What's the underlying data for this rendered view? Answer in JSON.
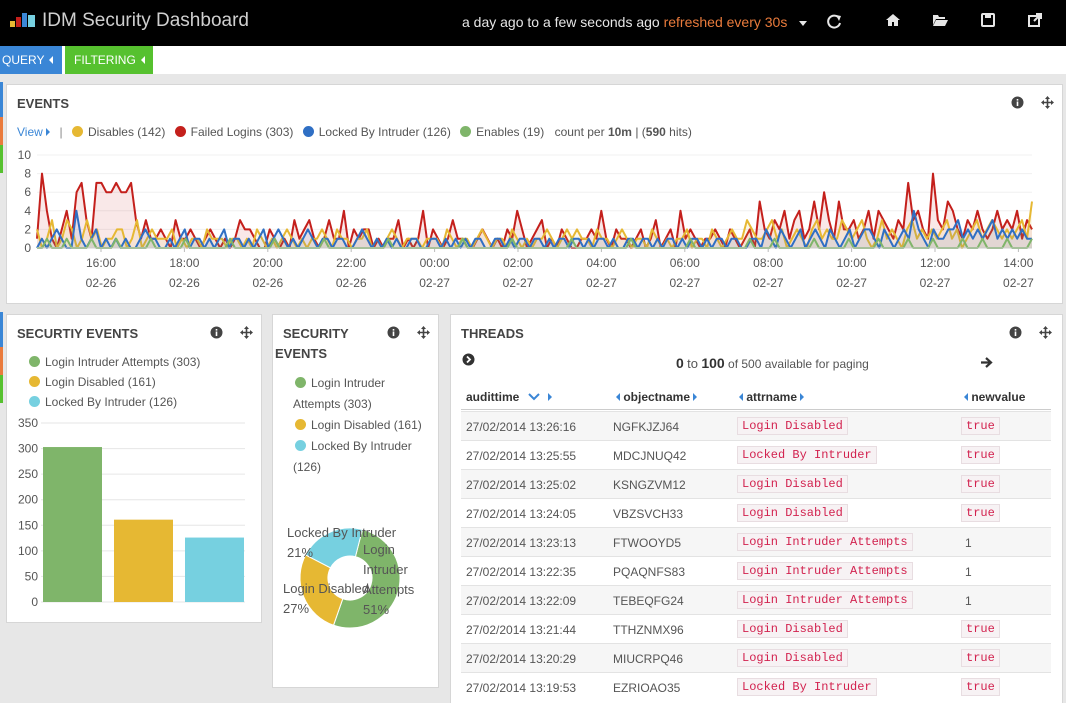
{
  "app": {
    "title": "IDM Security Dashboard"
  },
  "timepicker": {
    "range": "a day ago to a few seconds ago",
    "refresh": "refreshed every 30s"
  },
  "pills": {
    "query": "QUERY",
    "filtering": "FILTERING"
  },
  "events_panel": {
    "title": "EVENTS",
    "view_label": "View",
    "legend": [
      {
        "label": "Disables (142)",
        "color": "#e6b833"
      },
      {
        "label": "Failed Logins (303)",
        "color": "#c4201c"
      },
      {
        "label": "Locked By Intruder (126)",
        "color": "#2f6fc4"
      },
      {
        "label": "Enables (19)",
        "color": "#7fb56a"
      }
    ],
    "count_prefix": "count per",
    "interval": "10m",
    "sep": "| (",
    "hits": "590",
    "hits_suffix": "hits)"
  },
  "events_chart": {
    "type": "line",
    "y_ticks": [
      "10",
      "8",
      "6",
      "4",
      "2",
      "0"
    ],
    "ylim": [
      0,
      10
    ],
    "x_ticks": [
      {
        "time": "16:00",
        "date": "02-26"
      },
      {
        "time": "18:00",
        "date": "02-26"
      },
      {
        "time": "20:00",
        "date": "02-26"
      },
      {
        "time": "22:00",
        "date": "02-26"
      },
      {
        "time": "00:00",
        "date": "02-27"
      },
      {
        "time": "02:00",
        "date": "02-27"
      },
      {
        "time": "04:00",
        "date": "02-27"
      },
      {
        "time": "06:00",
        "date": "02-27"
      },
      {
        "time": "08:00",
        "date": "02-27"
      },
      {
        "time": "10:00",
        "date": "02-27"
      },
      {
        "time": "12:00",
        "date": "02-27"
      },
      {
        "time": "14:00",
        "date": "02-27"
      }
    ],
    "series": [
      {
        "name": "Failed Logins",
        "color": "#c4201c",
        "fill": "rgba(196,32,28,0.10)",
        "values": [
          1,
          8,
          4,
          1,
          0,
          2,
          4,
          1,
          6,
          7,
          3,
          1,
          7,
          7,
          6,
          6,
          7,
          6,
          6,
          7,
          3,
          1,
          3,
          1,
          1,
          2,
          1,
          0,
          3,
          1,
          1,
          2,
          1,
          0,
          1,
          2,
          1,
          0,
          1,
          0,
          1,
          3,
          2,
          2,
          1,
          0,
          0,
          2,
          1,
          0,
          1,
          0,
          3,
          1,
          2,
          3,
          1,
          0,
          1,
          3,
          1,
          1,
          4,
          0,
          2,
          1,
          2,
          2,
          0,
          1,
          0,
          1,
          1,
          3,
          0,
          1,
          0,
          1,
          4,
          0,
          2,
          1,
          0,
          1,
          3,
          1,
          1,
          0,
          0,
          1,
          2,
          1,
          0,
          1,
          0,
          2,
          1,
          4,
          2,
          0,
          1,
          2,
          3,
          0,
          1,
          0,
          2,
          1,
          0,
          0,
          1,
          1,
          2,
          1,
          4,
          1,
          0,
          2,
          1,
          1,
          0,
          1,
          2,
          0,
          1,
          3,
          0,
          1,
          2,
          0,
          4,
          1,
          2,
          1,
          0,
          1,
          1,
          2,
          1,
          0,
          2,
          1,
          0,
          1,
          2,
          0,
          5,
          2,
          1,
          3,
          2,
          4,
          1,
          3,
          4,
          1,
          2,
          5,
          2,
          6,
          3,
          1,
          5,
          2,
          2,
          3,
          1,
          2,
          4,
          1,
          4,
          3,
          2,
          1,
          3,
          2,
          7,
          3,
          4,
          2,
          1,
          8,
          3,
          2,
          5,
          4,
          2,
          1,
          3,
          2,
          4,
          2,
          1,
          2,
          4,
          2,
          3,
          2,
          4,
          1,
          3,
          2
        ]
      },
      {
        "name": "Disables",
        "color": "#e6b833",
        "fill": "rgba(230,184,51,0.10)",
        "values": [
          2,
          0,
          1,
          3,
          0,
          1,
          3,
          2,
          0,
          1,
          3,
          1,
          2,
          0,
          1,
          1,
          2,
          2,
          0,
          1,
          3,
          0,
          1,
          2,
          1,
          1,
          1,
          2,
          0,
          1,
          0,
          1,
          1,
          0,
          2,
          1,
          1,
          1,
          0,
          1,
          1,
          0,
          1,
          0,
          2,
          1,
          0,
          1,
          0,
          1,
          2,
          1,
          0,
          1,
          0,
          1,
          1,
          2,
          1,
          0,
          2,
          1,
          1,
          0,
          1,
          1,
          2,
          0,
          1,
          0,
          1,
          2,
          1,
          0,
          1,
          1,
          1,
          0,
          1,
          1,
          1,
          0,
          2,
          1,
          0,
          1,
          1,
          0,
          1,
          2,
          1,
          0,
          1,
          1,
          0,
          2,
          1,
          0,
          1,
          0,
          1,
          1,
          2,
          1,
          0,
          1,
          2,
          1,
          2,
          1,
          1,
          0,
          2,
          1,
          1,
          0,
          1,
          2,
          1,
          0,
          1,
          1,
          0,
          2,
          1,
          0,
          1,
          0,
          1,
          1,
          2,
          0,
          1,
          1,
          0,
          2,
          1,
          0,
          1,
          2,
          1,
          1,
          3,
          2,
          1,
          1,
          2,
          3,
          1,
          2,
          0,
          1,
          2,
          1,
          0,
          2,
          3,
          1,
          2,
          1,
          1,
          3,
          2,
          1,
          2,
          3,
          1,
          0,
          1,
          3,
          1,
          2,
          1,
          0,
          2,
          3,
          1,
          2,
          1,
          2,
          1,
          2,
          3,
          1,
          2,
          0,
          1,
          2,
          3,
          1,
          2,
          3,
          2,
          1,
          2,
          1,
          2,
          3,
          1,
          5
        ]
      },
      {
        "name": "Locked By Intruder",
        "color": "#2f6fc4",
        "fill": "rgba(47,111,196,0.10)",
        "values": [
          0,
          1,
          0,
          1,
          2,
          1,
          0,
          0,
          4,
          1,
          0,
          1,
          2,
          0,
          1,
          0,
          1,
          0,
          1,
          0,
          0,
          1,
          2,
          1,
          1,
          0,
          0,
          1,
          0,
          1,
          2,
          0,
          1,
          1,
          0,
          1,
          0,
          1,
          2,
          0,
          1,
          1,
          0,
          1,
          0,
          1,
          2,
          0,
          1,
          2,
          1,
          0,
          1,
          0,
          1,
          2,
          1,
          0,
          1,
          1,
          0,
          1,
          1,
          0,
          0,
          1,
          2,
          1,
          0,
          1,
          0,
          1,
          0,
          1,
          0,
          0,
          1,
          1,
          0,
          0,
          1,
          1,
          0,
          1,
          0,
          1,
          0,
          1,
          0,
          1,
          1,
          0,
          0,
          1,
          1,
          0,
          1,
          0,
          1,
          1,
          0,
          1,
          1,
          0,
          1,
          0,
          1,
          1,
          0,
          1,
          1,
          0,
          1,
          0,
          1,
          1,
          0,
          1,
          0,
          0,
          1,
          1,
          0,
          1,
          1,
          0,
          1,
          0,
          1,
          1,
          0,
          1,
          0,
          1,
          1,
          0,
          1,
          0,
          1,
          1,
          0,
          1,
          1,
          0,
          0,
          1,
          1,
          0,
          2,
          1,
          0,
          2,
          1,
          0,
          1,
          2,
          0,
          1,
          2,
          1,
          0,
          2,
          1,
          0,
          1,
          2,
          0,
          1,
          2,
          2,
          1,
          0,
          2,
          1,
          0,
          1,
          2,
          1,
          4,
          2,
          1,
          0,
          2,
          1,
          1,
          2,
          2,
          3,
          1,
          2,
          1,
          2,
          1,
          2,
          3,
          1,
          2,
          1,
          2,
          1,
          2,
          1,
          1
        ]
      },
      {
        "name": "Enables",
        "color": "#7fb56a",
        "fill": "rgba(127,181,106,0.10)",
        "values": [
          0,
          0,
          1,
          0,
          0,
          0,
          1,
          0,
          0,
          0,
          0,
          1,
          0,
          0,
          0,
          0,
          1,
          0,
          0,
          0,
          0,
          0,
          0,
          1,
          0,
          0,
          0,
          0,
          0,
          0,
          1,
          0,
          0,
          0,
          0,
          0,
          0,
          0,
          0,
          1,
          0,
          0,
          0,
          0,
          0,
          0,
          0,
          0,
          1,
          0,
          0,
          0,
          0,
          0,
          0,
          0,
          0,
          0,
          1,
          0,
          0,
          0,
          0,
          0,
          0,
          0,
          0,
          0,
          0,
          0,
          0,
          1,
          0,
          0,
          0,
          0,
          0,
          0,
          0,
          0,
          0,
          0,
          0,
          0,
          0,
          0,
          1,
          0,
          0,
          0,
          0,
          0,
          0,
          0,
          0,
          0,
          1,
          0,
          0,
          0,
          0,
          0,
          0,
          0,
          0,
          0,
          0,
          0,
          1,
          0,
          0,
          0,
          0,
          0,
          0,
          0,
          0,
          0,
          0,
          0,
          1,
          0,
          0,
          0,
          0,
          0,
          0,
          0,
          0,
          0,
          0,
          0,
          1,
          0,
          0,
          0,
          0,
          0,
          0,
          0,
          0,
          0,
          0,
          0,
          1,
          0,
          0,
          0,
          0,
          1,
          0,
          0,
          0,
          0,
          0,
          0,
          0,
          1,
          0,
          0,
          0,
          0,
          0,
          0,
          1,
          0,
          0,
          0,
          0,
          0,
          1,
          0,
          0,
          0,
          0,
          0,
          1,
          0,
          0,
          0,
          0,
          1,
          0,
          0,
          0,
          0,
          0,
          1,
          0,
          0,
          0,
          1,
          0,
          0,
          0,
          0,
          1,
          0,
          0,
          0,
          0,
          1
        ]
      }
    ]
  },
  "security_bar_panel": {
    "title": "SECURTIY EVENTS",
    "legend": [
      {
        "label": "Login Intruder Attempts (303)",
        "color": "#7fb56a"
      },
      {
        "label": "Login Disabled (161)",
        "color": "#e6b833"
      },
      {
        "label": "Locked By Intruder (126)",
        "color": "#76d0e0"
      }
    ],
    "y_ticks": [
      "350",
      "300",
      "250",
      "200",
      "150",
      "100",
      "50",
      "0"
    ]
  },
  "security_pie_panel": {
    "title_line1": "SECURITY",
    "title_line2": "EVENTS",
    "legend": [
      {
        "line1": "Login Intruder",
        "line2": "Attempts (303)",
        "color": "#7fb56a"
      },
      {
        "line1": "Login Disabled (161)",
        "line2": "",
        "color": "#e6b833"
      },
      {
        "line1": "Locked By Intruder",
        "line2": "(126)",
        "color": "#76d0e0"
      }
    ],
    "labels": [
      {
        "text": "Locked By Intruder",
        "pct": "21%"
      },
      {
        "text": "Login Disabled",
        "pct": "27%"
      },
      {
        "text1": "Login",
        "text2": "Intruder",
        "text3": "Attempts",
        "pct": "51%"
      }
    ]
  },
  "chart_data": [
    {
      "type": "bar",
      "categories": [
        "Login Intruder Attempts",
        "Login Disabled",
        "Locked By Intruder"
      ],
      "values": [
        303,
        161,
        126
      ],
      "colors": [
        "#7fb56a",
        "#e6b833",
        "#76d0e0"
      ],
      "ylim": [
        0,
        350
      ],
      "grid": true,
      "title": "SECURTIY EVENTS"
    },
    {
      "type": "pie",
      "categories": [
        "Login Intruder Attempts",
        "Login Disabled",
        "Locked By Intruder"
      ],
      "values": [
        303,
        161,
        126
      ],
      "percent": [
        51,
        27,
        21
      ],
      "colors": [
        "#7fb56a",
        "#e6b833",
        "#76d0e0"
      ],
      "donut": true
    }
  ],
  "threads_panel": {
    "title": "THREADS",
    "paging_from": "0",
    "paging_to": "to",
    "paging_end": "100",
    "paging_suffix": "of 500 available for paging",
    "columns": [
      "audittime",
      "objectname",
      "attrname",
      "newvalue"
    ],
    "rows": [
      {
        "time": "27/02/2014 13:26:16",
        "obj": "NGFKJZJ64",
        "attr": "Login Disabled",
        "val": "true",
        "code": true
      },
      {
        "time": "27/02/2014 13:25:55",
        "obj": "MDCJNUQ42",
        "attr": "Locked By Intruder",
        "val": "true",
        "code": true
      },
      {
        "time": "27/02/2014 13:25:02",
        "obj": "KSNGZVM12",
        "attr": "Login Disabled",
        "val": "true",
        "code": true
      },
      {
        "time": "27/02/2014 13:24:05",
        "obj": "VBZSVCH33",
        "attr": "Login Disabled",
        "val": "true",
        "code": true
      },
      {
        "time": "27/02/2014 13:23:13",
        "obj": "FTWOOYD5",
        "attr": "Login Intruder Attempts",
        "val": "1",
        "code": false
      },
      {
        "time": "27/02/2014 13:22:35",
        "obj": "PQAQNFS83",
        "attr": "Login Intruder Attempts",
        "val": "1",
        "code": false
      },
      {
        "time": "27/02/2014 13:22:09",
        "obj": "TEBEQFG24",
        "attr": "Login Intruder Attempts",
        "val": "1",
        "code": false
      },
      {
        "time": "27/02/2014 13:21:44",
        "obj": "TTHZNMX96",
        "attr": "Login Disabled",
        "val": "true",
        "code": true
      },
      {
        "time": "27/02/2014 13:20:29",
        "obj": "MIUCRPQ46",
        "attr": "Login Disabled",
        "val": "true",
        "code": true
      },
      {
        "time": "27/02/2014 13:19:53",
        "obj": "EZRIOAO35",
        "attr": "Locked By Intruder",
        "val": "true",
        "code": true
      }
    ]
  }
}
